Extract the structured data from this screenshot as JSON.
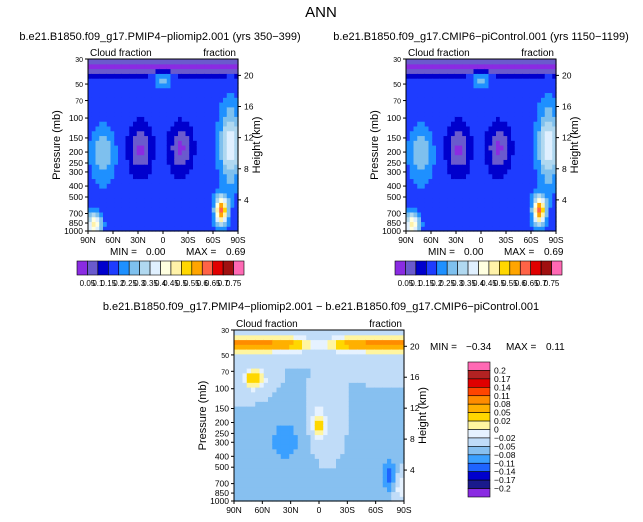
{
  "page_title": "ANN",
  "chart_data": [
    {
      "type": "heatmap",
      "title": "b.e21.B1850.f09_g17.PMIP4−pliomip2.001 (yrs 350−399)",
      "left_subtitle": "Cloud fraction",
      "right_subtitle": "fraction",
      "ylabel": "Pressure (mb)",
      "ylabel_right": "Height (km)",
      "x_ticks": [
        "90N",
        "60N",
        "30N",
        "0",
        "30S",
        "60S",
        "90S"
      ],
      "y_ticks": [
        "1000",
        "850",
        "700",
        "500",
        "400",
        "300",
        "250",
        "200",
        "150",
        "100",
        "70",
        "50",
        "30"
      ],
      "y_ticks_right": [
        "4",
        "8",
        "12",
        "16",
        "20"
      ],
      "min_label": "MIN =",
      "min_value": "0.00",
      "max_label": "MAX =",
      "max_value": "0.69",
      "colorbar_labels": [
        "0.05",
        "0.1",
        "0.15",
        "0.2",
        "0.25",
        "0.3",
        "0.35",
        "0.4",
        "0.45",
        "0.5",
        "0.55",
        "0.6",
        "0.65",
        "0.7",
        "0.75"
      ],
      "colorbar_colors": [
        "#8a2be2",
        "#6a5acd",
        "#0000cd",
        "#1e3cff",
        "#1e90ff",
        "#7ec0ee",
        "#b0d8f0",
        "#e0f0ff",
        "#ffffe0",
        "#fff2a8",
        "#ffd700",
        "#ffa500",
        "#ff6347",
        "#e00000",
        "#a01010",
        "#ff69b4"
      ]
    },
    {
      "type": "heatmap",
      "title": "b.e21.B1850.f09_g17.CMIP6−piControl.001 (yrs 1150−1199)",
      "left_subtitle": "Cloud fraction",
      "right_subtitle": "fraction",
      "ylabel": "Pressure (mb)",
      "ylabel_right": "Height (km)",
      "x_ticks": [
        "90N",
        "60N",
        "30N",
        "0",
        "30S",
        "60S",
        "90S"
      ],
      "y_ticks": [
        "1000",
        "850",
        "700",
        "500",
        "400",
        "300",
        "250",
        "200",
        "150",
        "100",
        "70",
        "50",
        "30"
      ],
      "y_ticks_right": [
        "4",
        "8",
        "12",
        "16",
        "20"
      ],
      "min_label": "MIN =",
      "min_value": "0.00",
      "max_label": "MAX =",
      "max_value": "0.69",
      "colorbar_labels": [
        "0.05",
        "0.1",
        "0.15",
        "0.2",
        "0.25",
        "0.3",
        "0.35",
        "0.4",
        "0.45",
        "0.5",
        "0.55",
        "0.6",
        "0.65",
        "0.7",
        "0.75"
      ],
      "colorbar_colors": [
        "#8a2be2",
        "#6a5acd",
        "#0000cd",
        "#1e3cff",
        "#1e90ff",
        "#7ec0ee",
        "#b0d8f0",
        "#e0f0ff",
        "#ffffe0",
        "#fff2a8",
        "#ffd700",
        "#ffa500",
        "#ff6347",
        "#e00000",
        "#a01010",
        "#ff69b4"
      ]
    },
    {
      "type": "heatmap",
      "title": "b.e21.B1850.f09_g17.PMIP4−pliomip2.001 − b.e21.B1850.f09_g17.CMIP6−piControl.001",
      "left_subtitle": "Cloud fraction",
      "right_subtitle": "fraction",
      "ylabel": "Pressure (mb)",
      "ylabel_right": "Height (km)",
      "x_ticks": [
        "90N",
        "60N",
        "30N",
        "0",
        "30S",
        "60S",
        "90S"
      ],
      "y_ticks": [
        "1000",
        "850",
        "700",
        "500",
        "400",
        "300",
        "250",
        "200",
        "150",
        "100",
        "70",
        "50",
        "30"
      ],
      "y_ticks_right": [
        "4",
        "8",
        "12",
        "16",
        "20"
      ],
      "min_label": "MIN =",
      "min_value": "−0.34",
      "max_label": "MAX =",
      "max_value": "0.11",
      "colorbar_labels": [
        "0.2",
        "0.17",
        "0.14",
        "0.11",
        "0.08",
        "0.05",
        "0.02",
        "0",
        "−0.02",
        "−0.05",
        "−0.08",
        "−0.11",
        "−0.14",
        "−0.17",
        "−0.2"
      ],
      "colorbar_colors": [
        "#ff69b4",
        "#b22222",
        "#e00000",
        "#ff4500",
        "#ff8c00",
        "#ffb000",
        "#ffd700",
        "#fff5a0",
        "#e6f2ff",
        "#c0dcf8",
        "#87c0f0",
        "#3ba0ff",
        "#1e64ff",
        "#0000cd",
        "#1a1a8c",
        "#8a2be2"
      ]
    }
  ]
}
